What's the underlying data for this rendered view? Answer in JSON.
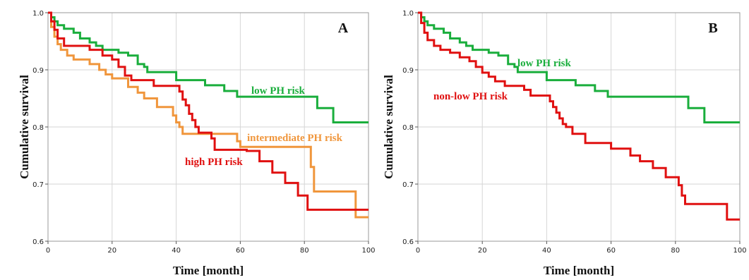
{
  "chart_data": [
    {
      "type": "line",
      "panel": "A",
      "xlabel": "Time [month]",
      "ylabel": "Cumulative survival",
      "xlim": [
        0,
        100
      ],
      "ylim": [
        0.6,
        1.0
      ],
      "x_ticks": [
        "0",
        "20",
        "40",
        "60",
        "80",
        "100"
      ],
      "y_ticks": [
        "0.6",
        "0.7",
        "0.8",
        "0.9",
        "1.0"
      ],
      "grid": true,
      "series": [
        {
          "name": "low PH risk",
          "color": "#1aae3c",
          "points": [
            [
              0,
              1.0
            ],
            [
              1,
              0.992
            ],
            [
              2,
              0.985
            ],
            [
              3,
              0.978
            ],
            [
              5,
              0.972
            ],
            [
              8,
              0.965
            ],
            [
              10,
              0.955
            ],
            [
              13,
              0.948
            ],
            [
              15,
              0.942
            ],
            [
              17,
              0.935
            ],
            [
              22,
              0.93
            ],
            [
              25,
              0.925
            ],
            [
              28,
              0.91
            ],
            [
              30,
              0.905
            ],
            [
              31,
              0.896
            ],
            [
              40,
              0.882
            ],
            [
              49,
              0.873
            ],
            [
              55,
              0.863
            ],
            [
              59,
              0.853
            ],
            [
              84,
              0.833
            ],
            [
              89,
              0.808
            ],
            [
              100,
              0.808
            ]
          ]
        },
        {
          "name": "intermediate PH risk",
          "color": "#f0963c",
          "points": [
            [
              0,
              1.0
            ],
            [
              1,
              0.975
            ],
            [
              2,
              0.958
            ],
            [
              3,
              0.945
            ],
            [
              4,
              0.935
            ],
            [
              6,
              0.925
            ],
            [
              8,
              0.918
            ],
            [
              13,
              0.91
            ],
            [
              16,
              0.9
            ],
            [
              18,
              0.892
            ],
            [
              20,
              0.885
            ],
            [
              25,
              0.87
            ],
            [
              28,
              0.86
            ],
            [
              30,
              0.85
            ],
            [
              34,
              0.835
            ],
            [
              39,
              0.82
            ],
            [
              40,
              0.808
            ],
            [
              41,
              0.8
            ],
            [
              42,
              0.788
            ],
            [
              59,
              0.775
            ],
            [
              60,
              0.765
            ],
            [
              81,
              0.765
            ],
            [
              82,
              0.73
            ],
            [
              83,
              0.687
            ],
            [
              96,
              0.642
            ],
            [
              100,
              0.642
            ]
          ]
        },
        {
          "name": "high PH risk",
          "color": "#e01010",
          "points": [
            [
              0,
              1.0
            ],
            [
              1,
              0.985
            ],
            [
              2,
              0.97
            ],
            [
              3,
              0.955
            ],
            [
              5,
              0.942
            ],
            [
              13,
              0.935
            ],
            [
              17,
              0.925
            ],
            [
              20,
              0.918
            ],
            [
              22,
              0.905
            ],
            [
              24,
              0.89
            ],
            [
              26,
              0.882
            ],
            [
              33,
              0.872
            ],
            [
              41,
              0.862
            ],
            [
              42,
              0.848
            ],
            [
              43,
              0.838
            ],
            [
              44,
              0.823
            ],
            [
              45,
              0.812
            ],
            [
              46,
              0.8
            ],
            [
              47,
              0.79
            ],
            [
              51,
              0.78
            ],
            [
              52,
              0.76
            ],
            [
              62,
              0.758
            ],
            [
              66,
              0.74
            ],
            [
              70,
              0.72
            ],
            [
              74,
              0.702
            ],
            [
              78,
              0.68
            ],
            [
              81,
              0.655
            ],
            [
              100,
              0.655
            ]
          ]
        }
      ],
      "annotations": [
        "low PH risk",
        "intermediate PH risk",
        "high PH risk"
      ]
    },
    {
      "type": "line",
      "panel": "B",
      "xlabel": "Time [month]",
      "ylabel": "Cumulative survival",
      "xlim": [
        0,
        100
      ],
      "ylim": [
        0.6,
        1.0
      ],
      "x_ticks": [
        "0",
        "20",
        "40",
        "60",
        "80",
        "100"
      ],
      "y_ticks": [
        "0.6",
        "0.7",
        "0.8",
        "0.9",
        "1.0"
      ],
      "grid": true,
      "series": [
        {
          "name": "low PH risk",
          "color": "#1aae3c",
          "points": [
            [
              0,
              1.0
            ],
            [
              1,
              0.992
            ],
            [
              2,
              0.985
            ],
            [
              3,
              0.978
            ],
            [
              5,
              0.972
            ],
            [
              8,
              0.965
            ],
            [
              10,
              0.955
            ],
            [
              13,
              0.948
            ],
            [
              15,
              0.942
            ],
            [
              17,
              0.935
            ],
            [
              22,
              0.93
            ],
            [
              25,
              0.925
            ],
            [
              28,
              0.91
            ],
            [
              30,
              0.905
            ],
            [
              31,
              0.896
            ],
            [
              40,
              0.882
            ],
            [
              49,
              0.873
            ],
            [
              55,
              0.863
            ],
            [
              59,
              0.853
            ],
            [
              84,
              0.833
            ],
            [
              89,
              0.808
            ],
            [
              100,
              0.808
            ]
          ]
        },
        {
          "name": "non-low PH risk",
          "color": "#e01010",
          "points": [
            [
              0,
              1.0
            ],
            [
              1,
              0.982
            ],
            [
              2,
              0.965
            ],
            [
              3,
              0.952
            ],
            [
              5,
              0.942
            ],
            [
              7,
              0.935
            ],
            [
              10,
              0.93
            ],
            [
              13,
              0.922
            ],
            [
              16,
              0.915
            ],
            [
              18,
              0.905
            ],
            [
              20,
              0.895
            ],
            [
              22,
              0.888
            ],
            [
              24,
              0.88
            ],
            [
              27,
              0.872
            ],
            [
              33,
              0.865
            ],
            [
              35,
              0.855
            ],
            [
              40,
              0.855
            ],
            [
              41,
              0.845
            ],
            [
              42,
              0.835
            ],
            [
              43,
              0.825
            ],
            [
              44,
              0.815
            ],
            [
              45,
              0.805
            ],
            [
              46,
              0.8
            ],
            [
              48,
              0.788
            ],
            [
              52,
              0.772
            ],
            [
              60,
              0.762
            ],
            [
              66,
              0.75
            ],
            [
              69,
              0.74
            ],
            [
              73,
              0.728
            ],
            [
              77,
              0.712
            ],
            [
              81,
              0.698
            ],
            [
              82,
              0.68
            ],
            [
              83,
              0.665
            ],
            [
              96,
              0.638
            ],
            [
              100,
              0.638
            ]
          ]
        }
      ],
      "annotations": [
        "low PH risk",
        "non-low PH risk"
      ]
    }
  ]
}
